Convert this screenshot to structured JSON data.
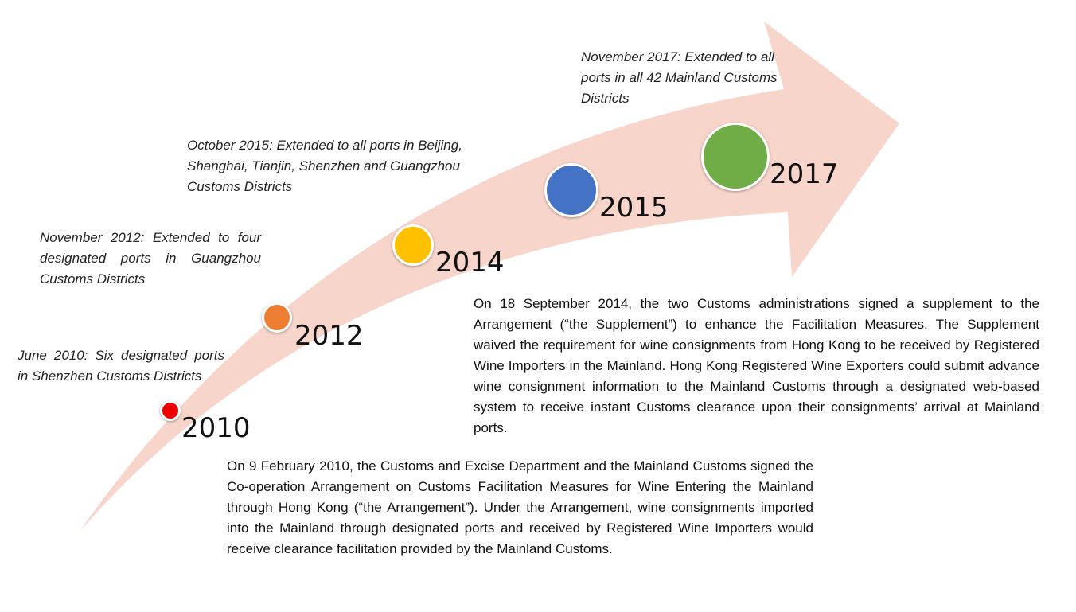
{
  "colors": {
    "arrow": "#f7d5cb",
    "dot_2010": "#ee0000",
    "dot_2012": "#ed7d31",
    "dot_2014": "#ffc000",
    "dot_2015": "#4472c4",
    "dot_2017": "#70ad47"
  },
  "timeline": [
    {
      "year": "2010",
      "milestone": "June 2010: Six designated ports in Shenzhen Customs Districts"
    },
    {
      "year": "2012",
      "milestone": "November 2012: Extended to four designated ports in Guangzhou Customs Districts"
    },
    {
      "year": "2014",
      "milestone": ""
    },
    {
      "year": "2015",
      "milestone": "October 2015: Extended to all ports in Beijing, Shanghai, Tianjin, Shenzhen and Guangzhou Customs Districts"
    },
    {
      "year": "2017",
      "milestone": "November 2017: Extended to all ports in all 42 Mainland Customs Districts"
    }
  ],
  "notes": {
    "supplement_2014": "On 18 September 2014, the two Customs administrations signed a supplement to the Arrangement (“the Supplement”) to enhance the Facilitation Measures.   The Supplement waived the requirement for wine consignments from Hong Kong to be received by Registered Wine Importers in the Mainland.  Hong Kong Registered Wine Exporters could submit advance wine consignment information to the Mainland Customs through a designated web-based system to receive instant Customs clearance upon their consignments’ arrival at Mainland ports.",
    "arrangement_2010": "On 9 February 2010, the Customs and Excise Department and the Mainland Customs signed the Co-operation Arrangement on Customs Facilitation Measures for Wine Entering the Mainland through Hong Kong (“the Arrangement”).   Under the Arrangement, wine consignments imported into the Mainland through designated ports and received by Registered Wine Importers would receive clearance facilitation provided by the Mainland Customs."
  }
}
